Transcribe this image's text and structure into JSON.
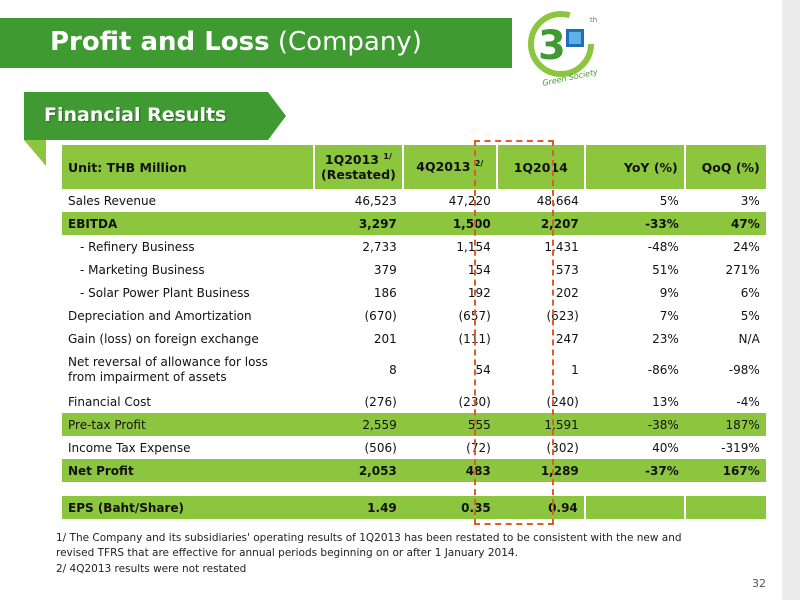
{
  "slide": {
    "title_bold": "Profit and Loss",
    "title_normal": "(Company)",
    "section": "Financial Results",
    "logo_text": "Green Society",
    "logo_th": "th",
    "page_number": "32",
    "colors": {
      "title_green": "#3f9a32",
      "row_green": "#8cc63f",
      "highlight_border": "#e05a2b"
    }
  },
  "table": {
    "unit": "Unit: THB Million",
    "headers": {
      "q1_2013": "1Q2013",
      "q1_2013_sup": "1/",
      "q1_2013_sub": "(Restated)",
      "q4_2013": "4Q2013",
      "q4_2013_sup": "2/",
      "q1_2014": "1Q2014",
      "yoy": "YoY (%)",
      "qoq": "QoQ (%)"
    },
    "rows": [
      {
        "label": "Sales Revenue",
        "v": [
          "46,523",
          "47,220",
          "48,664",
          "5%",
          "3%"
        ]
      },
      {
        "label": "EBITDA",
        "v": [
          "3,297",
          "1,500",
          "2,207",
          "-33%",
          "47%"
        ]
      },
      {
        "label": "- Refinery Business",
        "v": [
          "2,733",
          "1,154",
          "1,431",
          "-48%",
          "24%"
        ]
      },
      {
        "label": "- Marketing Business",
        "v": [
          "379",
          "154",
          "573",
          "51%",
          "271%"
        ]
      },
      {
        "label": "- Solar Power Plant Business",
        "v": [
          "186",
          "192",
          "202",
          "9%",
          "6%"
        ]
      },
      {
        "label": "Depreciation and Amortization",
        "v": [
          "(670)",
          "(657)",
          "(623)",
          "7%",
          "5%"
        ]
      },
      {
        "label": "Gain (loss) on foreign exchange",
        "v": [
          "201",
          "(111)",
          "247",
          "23%",
          "N/A"
        ]
      },
      {
        "label": "Net reversal of allowance for loss",
        "label2": "from impairment of assets",
        "v": [
          "8",
          "54",
          "1",
          "-86%",
          "-98%"
        ]
      },
      {
        "label": "Financial Cost",
        "v": [
          "(276)",
          "(230)",
          "(240)",
          "13%",
          "-4%"
        ]
      },
      {
        "label": "Pre-tax Profit",
        "v": [
          "2,559",
          "555",
          "1,591",
          "-38%",
          "187%"
        ]
      },
      {
        "label": "Income Tax Expense",
        "v": [
          "(506)",
          "(72)",
          "(302)",
          "40%",
          "-319%"
        ]
      },
      {
        "label": "Net Profit",
        "v": [
          "2,053",
          "483",
          "1,289",
          "-37%",
          "167%"
        ]
      },
      {
        "label": "EPS (Baht/Share)",
        "v": [
          "1.49",
          "0.35",
          "0.94",
          "",
          ""
        ]
      }
    ]
  },
  "footnotes": {
    "f1_line1": "1/ The Company and its subsidiaries' operating results of 1Q2013 has been restated to be consistent with the new and",
    "f1_line2": "revised TFRS that are effective for annual periods beginning on or after 1 January 2014.",
    "f2": "2/ 4Q2013 results were not restated"
  }
}
